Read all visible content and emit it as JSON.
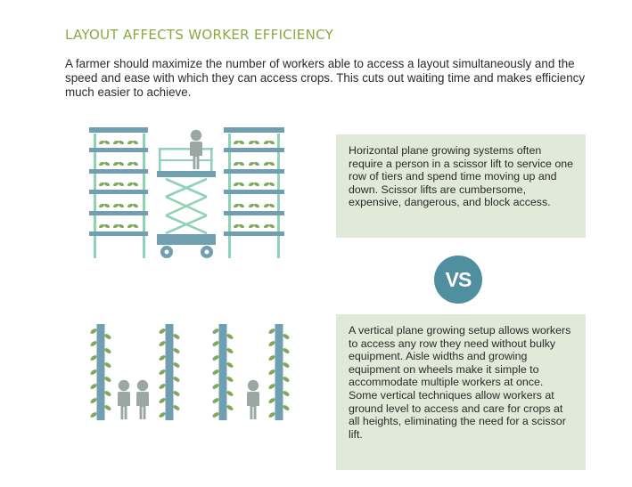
{
  "title": "LAYOUT AFFECTS WORKER EFFICIENCY",
  "intro": "A farmer should maximize the number of workers able to access a layout simultaneously and the speed and ease with which they can access crops. This cuts out waiting time and makes efficiency much easier to achieve.",
  "horizontal_text": "Horizontal plane growing systems often require a person in a scissor lift to service one row of tiers and spend time moving up and down. Scissor lifts are cumbersome, expensive, dangerous, and block access.",
  "vs_label": "VS",
  "vertical_text": "A vertical plane growing setup allows workers to access any row they need without bulky equipment. Aisle widths and growing equipment on wheels make it simple to accommodate multiple workers at once. Some vertical techniques allow workers at ground level to access and care for crops at all heights, eliminating the need for a scissor lift.",
  "colors": {
    "title_green": "#8aa83f",
    "shelf_blue": "#6f9fb0",
    "frame_mint": "#8ed3b6",
    "leaf_green": "#7fa85a",
    "person_gray": "#9aa7a5",
    "box_bg": "#e1e9d8",
    "vs_circle": "#4f8fa0"
  }
}
